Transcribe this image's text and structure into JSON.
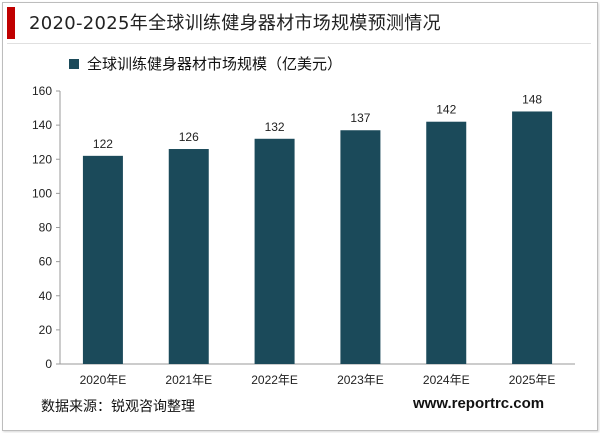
{
  "header": {
    "title": "2020-2025年全球训练健身器材市场规模预测情况"
  },
  "footer": {
    "source": "数据来源：锐观咨询整理",
    "watermark": "www.reportrc.com"
  },
  "colors": {
    "bar": "#1b4a5a",
    "accent": "#c00000"
  },
  "chart_data": {
    "type": "bar",
    "title": "",
    "categories": [
      "2020年E",
      "2021年E",
      "2022年E",
      "2023年E",
      "2024年E",
      "2025年E"
    ],
    "series": [
      {
        "name": "全球训练健身器材市场规模（亿美元）",
        "values": [
          122,
          126,
          132,
          137,
          142,
          148
        ]
      }
    ],
    "ylim": [
      0,
      160
    ],
    "yticks": [
      0,
      20,
      40,
      60,
      80,
      100,
      120,
      140,
      160
    ],
    "xlabel": "",
    "ylabel": "",
    "grid": false,
    "legend_position": "top-left",
    "data_labels": true
  }
}
